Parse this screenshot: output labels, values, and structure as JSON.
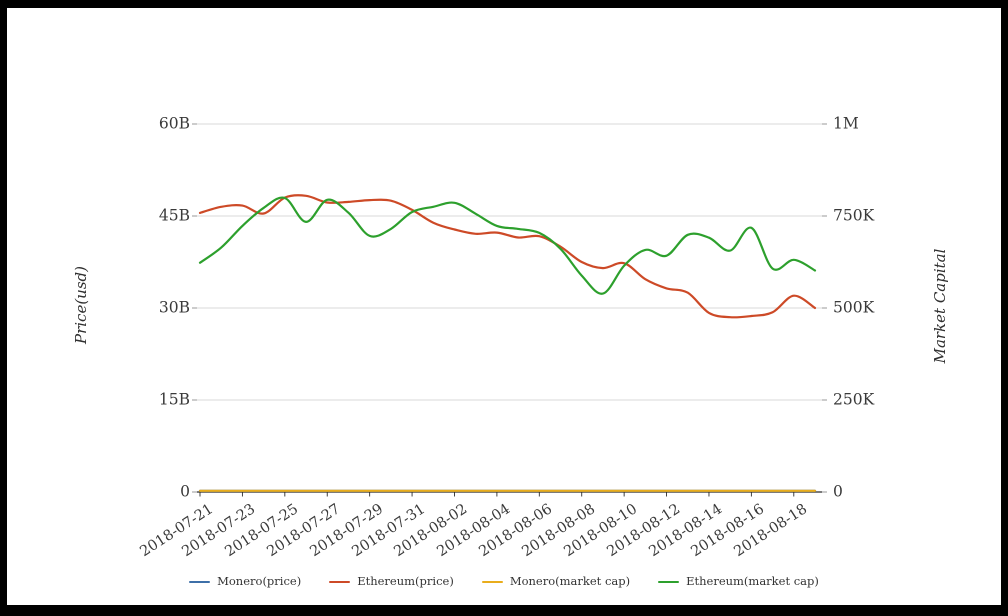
{
  "window": {
    "background": "#ffffff",
    "frame_color": "#000000"
  },
  "chart_data": {
    "type": "line",
    "title": "",
    "x": [
      "2018-07-21",
      "2018-07-22",
      "2018-07-23",
      "2018-07-24",
      "2018-07-25",
      "2018-07-26",
      "2018-07-27",
      "2018-07-28",
      "2018-07-29",
      "2018-07-30",
      "2018-07-31",
      "2018-08-01",
      "2018-08-02",
      "2018-08-03",
      "2018-08-04",
      "2018-08-05",
      "2018-08-06",
      "2018-08-07",
      "2018-08-08",
      "2018-08-09",
      "2018-08-10",
      "2018-08-11",
      "2018-08-12",
      "2018-08-13",
      "2018-08-14",
      "2018-08-15",
      "2018-08-16",
      "2018-08-17",
      "2018-08-18",
      "2018-08-19"
    ],
    "x_tick_labels": [
      "2018-07-21",
      "2018-07-23",
      "2018-07-25",
      "2018-07-27",
      "2018-07-29",
      "2018-07-31",
      "2018-08-02",
      "2018-08-04",
      "2018-08-06",
      "2018-08-08",
      "2018-08-10",
      "2018-08-12",
      "2018-08-14",
      "2018-08-16",
      "2018-08-18"
    ],
    "left_axis": {
      "label": "Price(usd)",
      "tick_labels": [
        "0",
        "15B",
        "30B",
        "45B",
        "60B"
      ],
      "tick_values_B": [
        0,
        15,
        30,
        45,
        60
      ],
      "range_B": [
        0,
        60
      ]
    },
    "right_axis": {
      "label": "Market Capital",
      "tick_labels": [
        "0",
        "250K",
        "500K",
        "750K",
        "1M"
      ],
      "tick_values_K": [
        0,
        250,
        500,
        750,
        1000
      ],
      "range_K": [
        0,
        1000
      ]
    },
    "grid": true,
    "legend_position": "bottom",
    "series": [
      {
        "name": "Monero(price)",
        "axis": "left",
        "unit": "B",
        "color": "#3d6fa8",
        "values": [
          0,
          0,
          0,
          0,
          0,
          0,
          0,
          0,
          0,
          0,
          0,
          0,
          0,
          0,
          0,
          0,
          0,
          0,
          0,
          0,
          0,
          0,
          0,
          0,
          0,
          0,
          0,
          0,
          0,
          0
        ]
      },
      {
        "name": "Ethereum(price)",
        "axis": "left",
        "unit": "B",
        "color": "#cd4a27",
        "values": [
          45.5,
          46.5,
          46.7,
          45.4,
          48.0,
          48.3,
          47.2,
          47.3,
          47.6,
          47.5,
          46.0,
          43.9,
          42.8,
          42.1,
          42.3,
          41.5,
          41.7,
          40.0,
          37.5,
          36.5,
          37.3,
          34.7,
          33.2,
          32.5,
          29.2,
          28.5,
          28.7,
          29.3,
          32.0,
          30.0
        ]
      },
      {
        "name": "Monero(market cap)",
        "axis": "left",
        "unit": "B",
        "color": "#e9ad1c",
        "values": [
          0,
          0,
          0,
          0,
          0,
          0,
          0,
          0,
          0,
          0,
          0,
          0,
          0,
          0,
          0,
          0,
          0,
          0,
          0,
          0,
          0,
          0,
          0,
          0,
          0,
          0,
          0,
          0,
          0,
          0
        ]
      },
      {
        "name": "Ethereum(market cap)",
        "axis": "right",
        "unit": "K",
        "color": "#2da02d",
        "values": [
          623,
          664,
          723,
          772,
          799,
          734,
          794,
          759,
          696,
          715,
          761,
          775,
          786,
          756,
          723,
          715,
          704,
          661,
          588,
          539,
          615,
          658,
          642,
          699,
          691,
          656,
          718,
          607,
          631,
          602
        ]
      }
    ],
    "colors": {
      "grid": "#d9d9d9",
      "axis_line": "#2b2b2b",
      "tick_text": "#3a3a3a"
    }
  }
}
